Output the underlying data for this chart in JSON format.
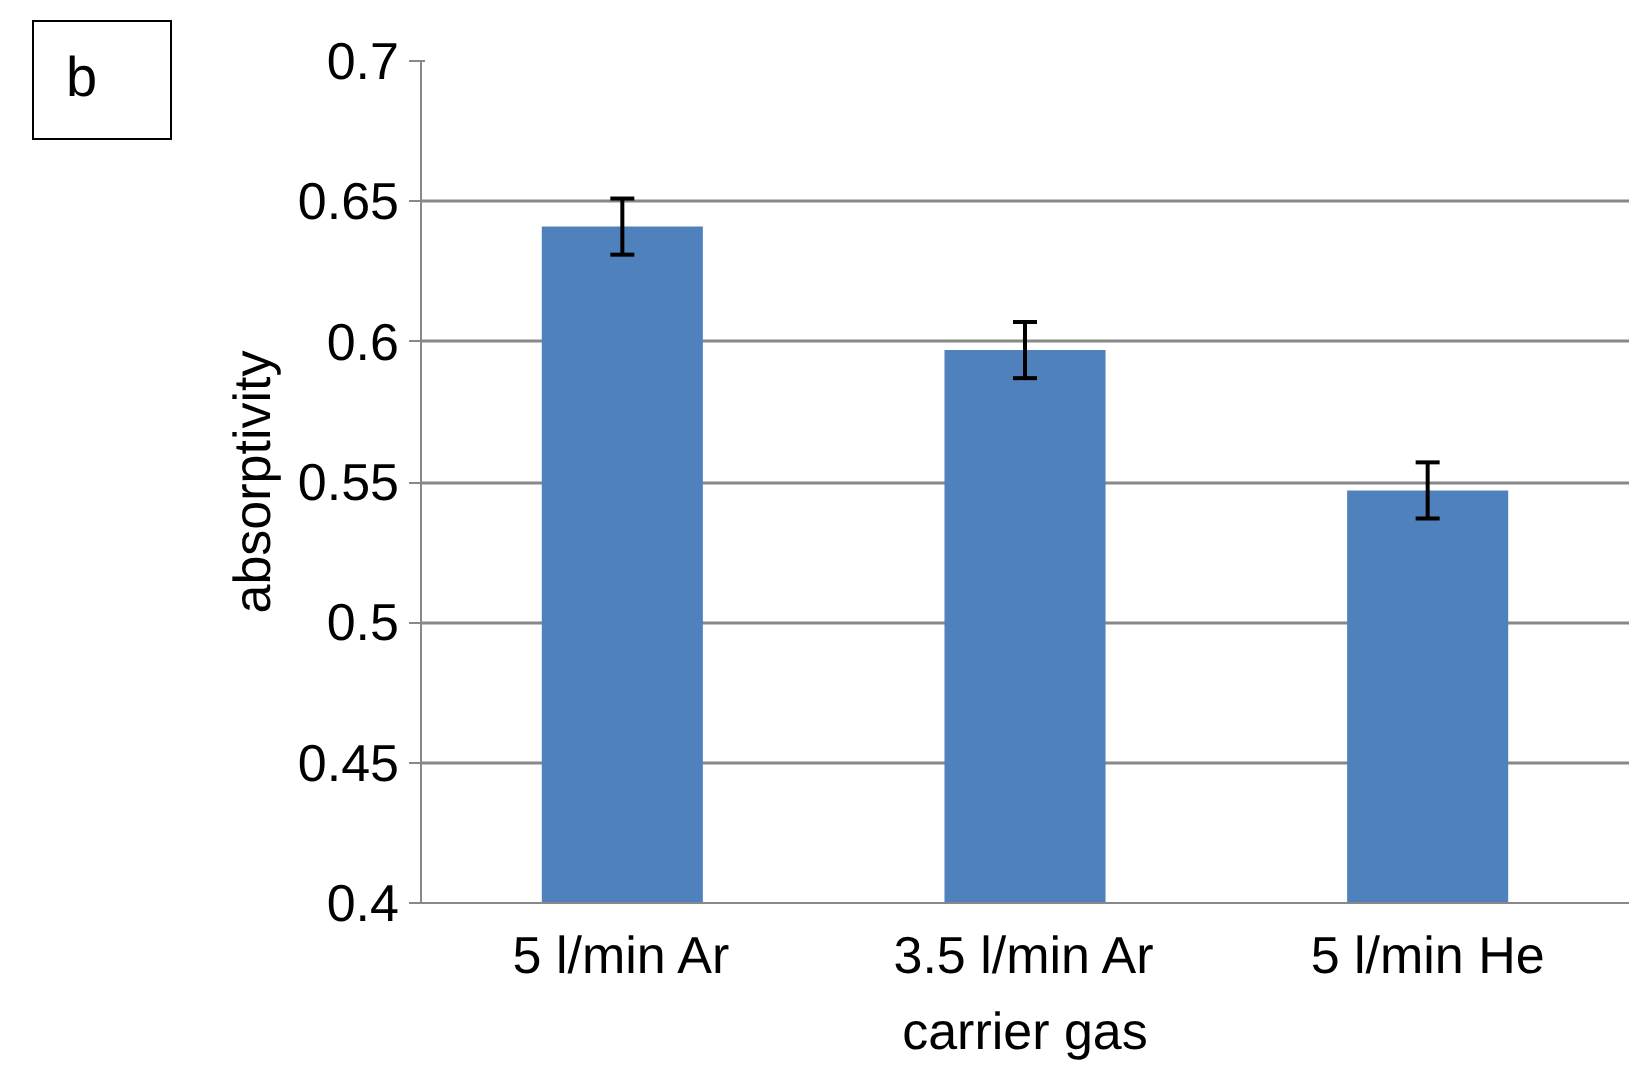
{
  "chart_data": {
    "type": "bar",
    "xlabel": "carrier gas",
    "ylabel": "absorptivity",
    "categories": [
      "5 l/min Ar",
      "3.5 l/min Ar",
      "5 l/min He"
    ],
    "values": [
      0.641,
      0.597,
      0.547
    ],
    "errors": [
      0.01,
      0.01,
      0.01
    ],
    "color": "#4f81bd",
    "ylim": [
      0.4,
      0.7
    ],
    "yticks": [
      0.4,
      0.45,
      0.5,
      0.55,
      0.6,
      0.65,
      0.7
    ],
    "grid": "y",
    "annotations": [
      "b"
    ]
  }
}
